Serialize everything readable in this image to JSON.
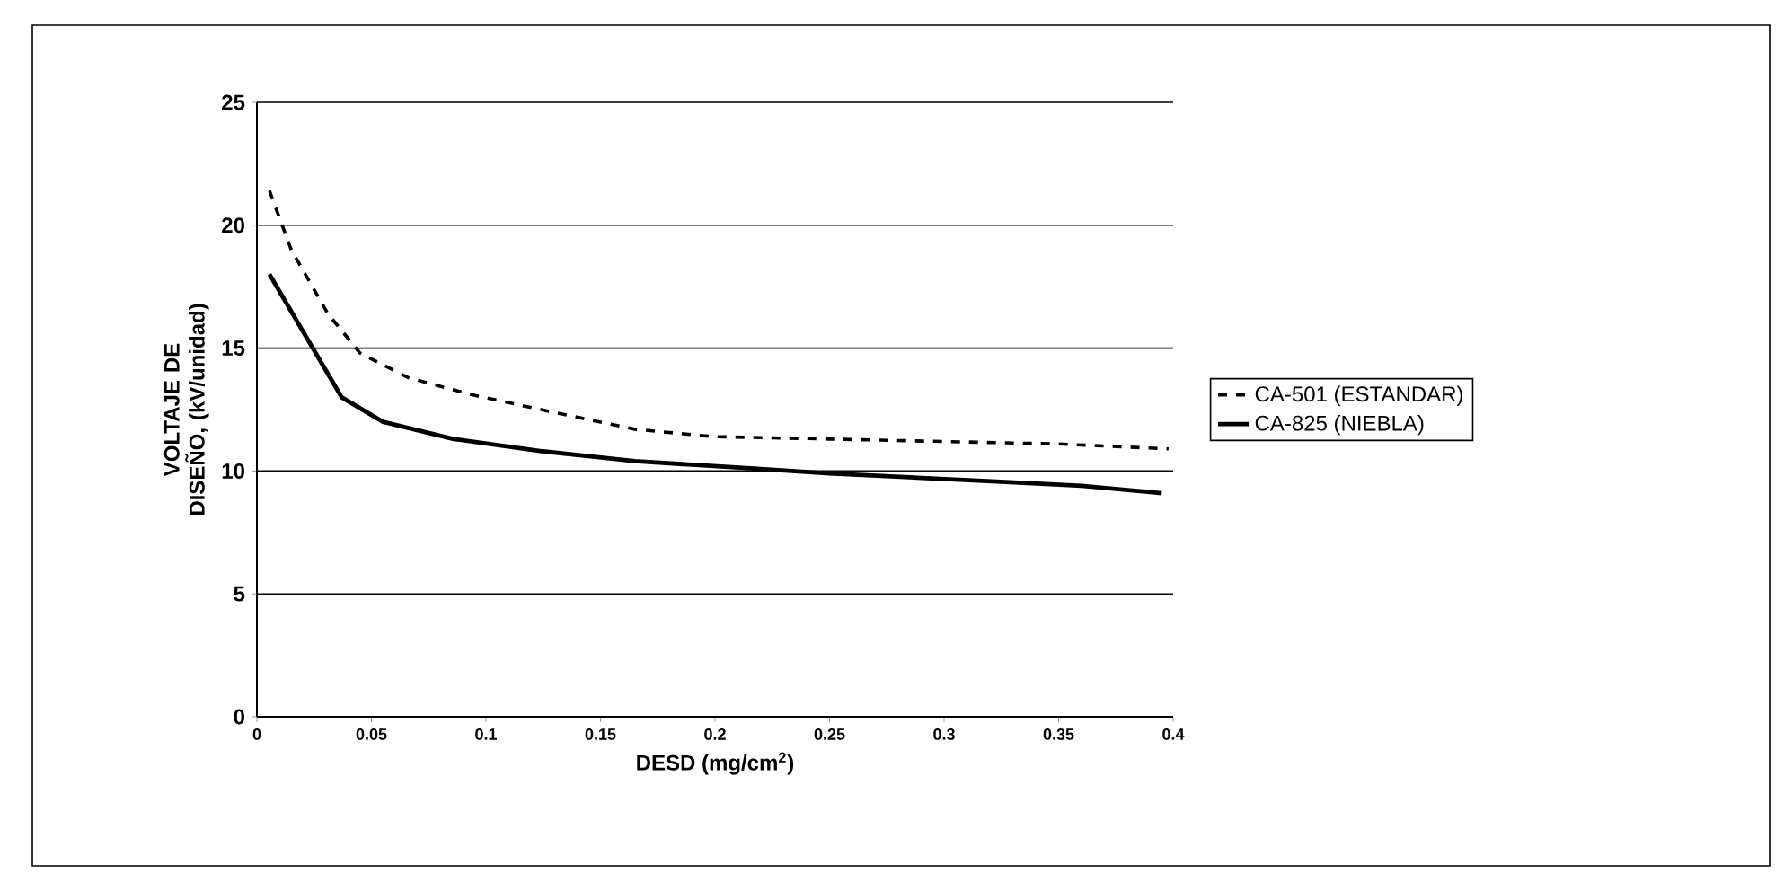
{
  "chart_data": {
    "type": "line",
    "xlabel": "DESD (mg/cm$^{2}$)",
    "ylabel": "VOLTAJE DE DISEÑO, (kV/unidad)",
    "xlim": [
      0,
      0.4
    ],
    "xticks": [
      0,
      0.05,
      0.1,
      0.15,
      0.2,
      0.25,
      0.3,
      0.35,
      0.4
    ],
    "ylim": [
      0,
      25
    ],
    "yticks": [
      0,
      5,
      10,
      15,
      20,
      25
    ],
    "grid": "y",
    "legend": "right",
    "series": [
      {
        "name": "CA-501 (ESTANDAR)",
        "color": "#000000",
        "line_style": "dashed",
        "x": [
          0.0055,
          0.015,
          0.031,
          0.045,
          0.066,
          0.094,
          0.129,
          0.165,
          0.199,
          0.25,
          0.3,
          0.35,
          0.398
        ],
        "values": [
          21.4,
          19.0,
          16.4,
          14.8,
          13.8,
          13.1,
          12.4,
          11.7,
          11.4,
          11.3,
          11.2,
          11.1,
          10.9
        ]
      },
      {
        "name": "CA-825 (NIEBLA)",
        "color": "#000000",
        "line_style": "solid",
        "x": [
          0.0055,
          0.025,
          0.037,
          0.055,
          0.086,
          0.125,
          0.165,
          0.217,
          0.25,
          0.317,
          0.36,
          0.395
        ],
        "values": [
          18.0,
          14.9,
          13.0,
          12.0,
          11.3,
          10.8,
          10.4,
          10.1,
          9.9,
          9.6,
          9.4,
          9.1
        ]
      }
    ]
  }
}
